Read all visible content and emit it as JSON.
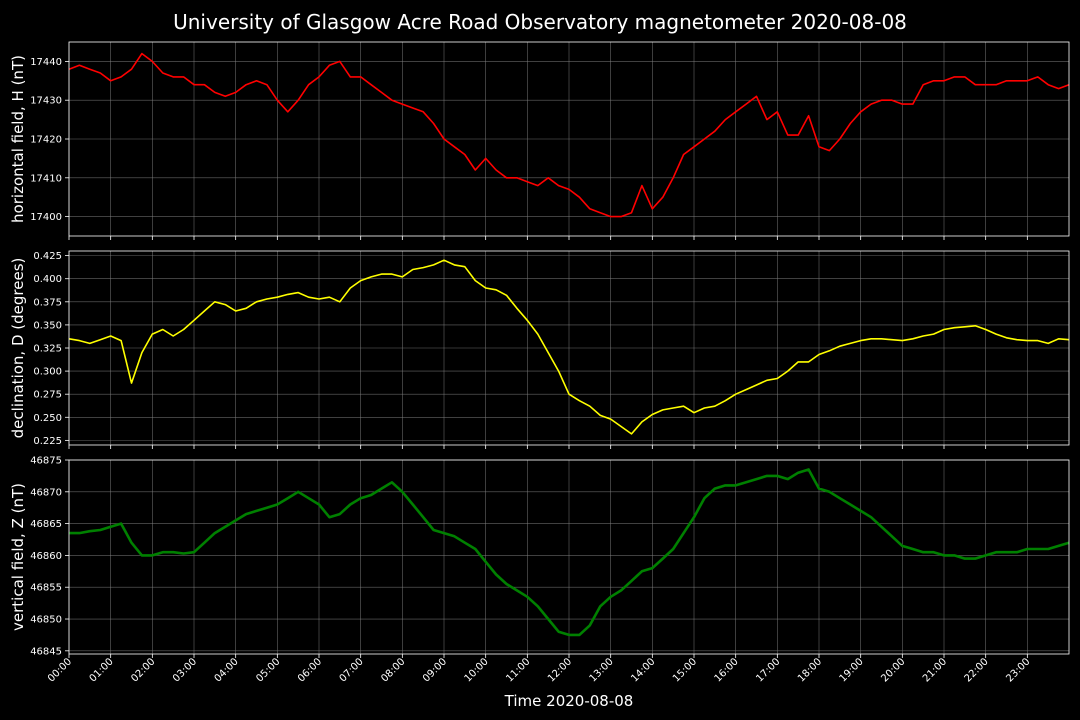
{
  "title": "University of Glasgow Acre Road Observatory magnetometer 2020-08-08",
  "xlabel": "Time 2020-08-08",
  "x_tick_labels": [
    "00:00",
    "01:00",
    "02:00",
    "03:00",
    "04:00",
    "05:00",
    "06:00",
    "07:00",
    "08:00",
    "09:00",
    "10:00",
    "11:00",
    "12:00",
    "13:00",
    "14:00",
    "15:00",
    "16:00",
    "17:00",
    "18:00",
    "19:00",
    "20:00",
    "21:00",
    "22:00",
    "23:00"
  ],
  "colors": {
    "background": "#000000",
    "h": "#ff0000",
    "d": "#ffff00",
    "z": "#008000",
    "grid": "#808080"
  },
  "chart_data": [
    {
      "type": "line",
      "ylabel": "horizontal field, H (nT)",
      "xlim": [
        "00:00",
        "24:00"
      ],
      "ylim": [
        17395,
        17445
      ],
      "yticks": [
        17400,
        17410,
        17420,
        17430,
        17440
      ],
      "grid": true,
      "series": [
        {
          "color": "#ff0000",
          "x": [
            "00:00",
            "00:15",
            "00:30",
            "00:45",
            "01:00",
            "01:15",
            "01:30",
            "01:45",
            "02:00",
            "02:15",
            "02:30",
            "02:45",
            "03:00",
            "03:15",
            "03:30",
            "03:45",
            "04:00",
            "04:15",
            "04:30",
            "04:45",
            "05:00",
            "05:15",
            "05:30",
            "05:45",
            "06:00",
            "06:15",
            "06:30",
            "06:45",
            "07:00",
            "07:15",
            "07:30",
            "07:45",
            "08:00",
            "08:15",
            "08:30",
            "08:45",
            "09:00",
            "09:15",
            "09:30",
            "09:45",
            "10:00",
            "10:15",
            "10:30",
            "10:45",
            "11:00",
            "11:15",
            "11:30",
            "11:45",
            "12:00",
            "12:15",
            "12:30",
            "12:45",
            "13:00",
            "13:15",
            "13:30",
            "13:45",
            "14:00",
            "14:15",
            "14:30",
            "14:45",
            "15:00",
            "15:15",
            "15:30",
            "15:45",
            "16:00",
            "16:15",
            "16:30",
            "16:45",
            "17:00",
            "17:15",
            "17:30",
            "17:45",
            "18:00",
            "18:15",
            "18:30",
            "18:45",
            "19:00",
            "19:15",
            "19:30",
            "19:45",
            "20:00",
            "20:15",
            "20:30",
            "20:45",
            "21:00",
            "21:15",
            "21:30",
            "21:45",
            "22:00",
            "22:15",
            "22:30",
            "22:45",
            "23:00",
            "23:15",
            "23:30",
            "23:45",
            "24:00"
          ],
          "values": [
            17438,
            17439,
            17438,
            17437,
            17435,
            17436,
            17438,
            17442,
            17440,
            17437,
            17436,
            17436,
            17434,
            17434,
            17432,
            17431,
            17432,
            17434,
            17435,
            17434,
            17430,
            17427,
            17430,
            17434,
            17436,
            17439,
            17440,
            17436,
            17436,
            17434,
            17432,
            17430,
            17429,
            17428,
            17427,
            17424,
            17420,
            17418,
            17416,
            17412,
            17415,
            17412,
            17410,
            17410,
            17409,
            17408,
            17410,
            17408,
            17407,
            17405,
            17402,
            17401,
            17400,
            17400,
            17401,
            17408,
            17402,
            17405,
            17410,
            17416,
            17418,
            17420,
            17422,
            17425,
            17427,
            17429,
            17431,
            17425,
            17427,
            17421,
            17421,
            17426,
            17418,
            17417,
            17420,
            17424,
            17427,
            17429,
            17430,
            17430,
            17429,
            17429,
            17434,
            17435,
            17435,
            17436,
            17436,
            17434,
            17434,
            17434,
            17435,
            17435,
            17435,
            17436,
            17434,
            17433,
            17434
          ]
        }
      ]
    },
    {
      "type": "line",
      "ylabel": "declination, D (degrees)",
      "xlim": [
        "00:00",
        "24:00"
      ],
      "ylim": [
        0.22,
        0.43
      ],
      "yticks": [
        0.225,
        0.25,
        0.275,
        0.3,
        0.325,
        0.35,
        0.375,
        0.4,
        0.425
      ],
      "grid": true,
      "series": [
        {
          "color": "#ffff00",
          "x": [
            "00:00",
            "00:15",
            "00:30",
            "00:45",
            "01:00",
            "01:15",
            "01:30",
            "01:45",
            "02:00",
            "02:15",
            "02:30",
            "02:45",
            "03:00",
            "03:15",
            "03:30",
            "03:45",
            "04:00",
            "04:15",
            "04:30",
            "04:45",
            "05:00",
            "05:15",
            "05:30",
            "05:45",
            "06:00",
            "06:15",
            "06:30",
            "06:45",
            "07:00",
            "07:15",
            "07:30",
            "07:45",
            "08:00",
            "08:15",
            "08:30",
            "08:45",
            "09:00",
            "09:15",
            "09:30",
            "09:45",
            "10:00",
            "10:15",
            "10:30",
            "10:45",
            "11:00",
            "11:15",
            "11:30",
            "11:45",
            "12:00",
            "12:15",
            "12:30",
            "12:45",
            "13:00",
            "13:15",
            "13:30",
            "13:45",
            "14:00",
            "14:15",
            "14:30",
            "14:45",
            "15:00",
            "15:15",
            "15:30",
            "15:45",
            "16:00",
            "16:15",
            "16:30",
            "16:45",
            "17:00",
            "17:15",
            "17:30",
            "17:45",
            "18:00",
            "18:15",
            "18:30",
            "18:45",
            "19:00",
            "19:15",
            "19:30",
            "19:45",
            "20:00",
            "20:15",
            "20:30",
            "20:45",
            "21:00",
            "21:15",
            "21:30",
            "21:45",
            "22:00",
            "22:15",
            "22:30",
            "22:45",
            "23:00",
            "23:15",
            "23:30",
            "23:45",
            "24:00"
          ],
          "values": [
            0.335,
            0.333,
            0.33,
            0.334,
            0.338,
            0.333,
            0.287,
            0.32,
            0.34,
            0.345,
            0.338,
            0.345,
            0.355,
            0.365,
            0.375,
            0.372,
            0.365,
            0.368,
            0.375,
            0.378,
            0.38,
            0.383,
            0.385,
            0.38,
            0.378,
            0.38,
            0.375,
            0.39,
            0.398,
            0.402,
            0.405,
            0.405,
            0.402,
            0.41,
            0.412,
            0.415,
            0.42,
            0.415,
            0.413,
            0.398,
            0.39,
            0.388,
            0.382,
            0.368,
            0.355,
            0.34,
            0.32,
            0.3,
            0.275,
            0.268,
            0.262,
            0.252,
            0.248,
            0.24,
            0.232,
            0.245,
            0.253,
            0.258,
            0.26,
            0.262,
            0.255,
            0.26,
            0.262,
            0.268,
            0.275,
            0.28,
            0.285,
            0.29,
            0.292,
            0.3,
            0.31,
            0.31,
            0.318,
            0.322,
            0.327,
            0.33,
            0.333,
            0.335,
            0.335,
            0.334,
            0.333,
            0.335,
            0.338,
            0.34,
            0.345,
            0.347,
            0.348,
            0.349,
            0.345,
            0.34,
            0.336,
            0.334,
            0.333,
            0.333,
            0.33,
            0.335,
            0.334
          ]
        }
      ]
    },
    {
      "type": "line",
      "ylabel": "vertical field, Z (nT)",
      "xlim": [
        "00:00",
        "24:00"
      ],
      "ylim": [
        46844.5,
        46875
      ],
      "yticks": [
        46845,
        46850,
        46855,
        46860,
        46865,
        46870,
        46875
      ],
      "grid": true,
      "series": [
        {
          "color": "#008000",
          "x": [
            "00:00",
            "00:15",
            "00:30",
            "00:45",
            "01:00",
            "01:15",
            "01:30",
            "01:45",
            "02:00",
            "02:15",
            "02:30",
            "02:45",
            "03:00",
            "03:15",
            "03:30",
            "03:45",
            "04:00",
            "04:15",
            "04:30",
            "04:45",
            "05:00",
            "05:15",
            "05:30",
            "05:45",
            "06:00",
            "06:15",
            "06:30",
            "06:45",
            "07:00",
            "07:15",
            "07:30",
            "07:45",
            "08:00",
            "08:15",
            "08:30",
            "08:45",
            "09:00",
            "09:15",
            "09:30",
            "09:45",
            "10:00",
            "10:15",
            "10:30",
            "10:45",
            "11:00",
            "11:15",
            "11:30",
            "11:45",
            "12:00",
            "12:15",
            "12:30",
            "12:45",
            "13:00",
            "13:15",
            "13:30",
            "13:45",
            "14:00",
            "14:15",
            "14:30",
            "14:45",
            "15:00",
            "15:15",
            "15:30",
            "15:45",
            "16:00",
            "16:15",
            "16:30",
            "16:45",
            "17:00",
            "17:15",
            "17:30",
            "17:45",
            "18:00",
            "18:15",
            "18:30",
            "18:45",
            "19:00",
            "19:15",
            "19:30",
            "19:45",
            "20:00",
            "20:15",
            "20:30",
            "20:45",
            "21:00",
            "21:15",
            "21:30",
            "21:45",
            "22:00",
            "22:15",
            "22:30",
            "22:45",
            "23:00",
            "23:15",
            "23:30",
            "23:45",
            "24:00"
          ],
          "values": [
            46863.5,
            46863.5,
            46863.8,
            46864.0,
            46864.5,
            46865.0,
            46862.0,
            46860.0,
            46860.0,
            46860.5,
            46860.5,
            46860.3,
            46860.5,
            46862.0,
            46863.5,
            46864.5,
            46865.5,
            46866.5,
            46867.0,
            46867.5,
            46868.0,
            46869.0,
            46870.0,
            46869.0,
            46868.0,
            46866.0,
            46866.5,
            46868.0,
            46869.0,
            46869.5,
            46870.5,
            46871.5,
            46870.0,
            46868.0,
            46866.0,
            46864.0,
            46863.5,
            46863.0,
            46862.0,
            46861.0,
            46859.0,
            46857.0,
            46855.5,
            46854.5,
            46853.5,
            46852.0,
            46850.0,
            46848.0,
            46847.5,
            46847.5,
            46849.0,
            46852.0,
            46853.5,
            46854.5,
            46856.0,
            46857.5,
            46858.0,
            46859.5,
            46861.0,
            46863.5,
            46866.0,
            46869.0,
            46870.5,
            46871.0,
            46871.0,
            46871.5,
            46872.0,
            46872.5,
            46872.5,
            46872.0,
            46873.0,
            46873.5,
            46870.5,
            46870.0,
            46869.0,
            46868.0,
            46867.0,
            46866.0,
            46864.5,
            46863.0,
            46861.5,
            46861.0,
            46860.5,
            46860.5,
            46860.0,
            46860.0,
            46859.5,
            46859.5,
            46860.0,
            46860.5,
            46860.5,
            46860.5,
            46861.0,
            46861.0,
            46861.0,
            46861.5,
            46862.0
          ]
        }
      ]
    }
  ]
}
